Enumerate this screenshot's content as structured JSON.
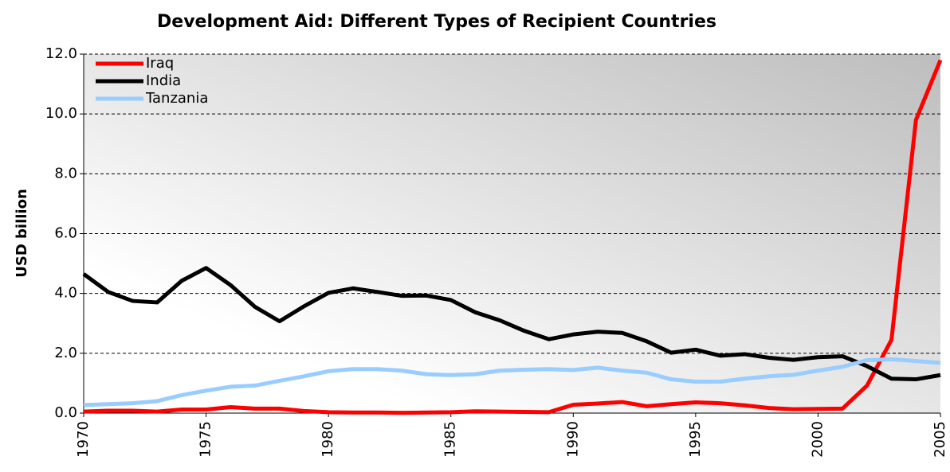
{
  "chart_data": {
    "type": "line",
    "title": "Development Aid: Different Types of Recipient Countries",
    "y_label": "USD billion",
    "x": [
      1970,
      1971,
      1972,
      1973,
      1974,
      1975,
      1976,
      1977,
      1978,
      1979,
      1980,
      1981,
      1982,
      1983,
      1984,
      1985,
      1986,
      1987,
      1988,
      1989,
      1990,
      1991,
      1992,
      1993,
      1994,
      1995,
      1996,
      1997,
      1998,
      1999,
      2000,
      2001,
      2002,
      2003,
      2004,
      2005
    ],
    "series": [
      {
        "name": "Iraq",
        "color": "#ff0000",
        "values": [
          0.05,
          0.08,
          0.08,
          0.05,
          0.12,
          0.12,
          0.2,
          0.15,
          0.15,
          0.07,
          0.03,
          0.02,
          0.02,
          0.01,
          0.02,
          0.03,
          0.06,
          0.05,
          0.04,
          0.03,
          0.28,
          0.32,
          0.37,
          0.23,
          0.3,
          0.36,
          0.33,
          0.26,
          0.17,
          0.13,
          0.14,
          0.15,
          0.92,
          2.45,
          9.8,
          11.8
        ]
      },
      {
        "name": "India",
        "color": "#000000",
        "values": [
          4.65,
          4.05,
          3.75,
          3.7,
          4.42,
          4.85,
          4.28,
          3.55,
          3.07,
          3.57,
          4.02,
          4.17,
          4.05,
          3.92,
          3.93,
          3.78,
          3.37,
          3.1,
          2.75,
          2.47,
          2.63,
          2.72,
          2.68,
          2.4,
          2.02,
          2.12,
          1.92,
          1.97,
          1.85,
          1.78,
          1.87,
          1.9,
          1.57,
          1.15,
          1.13,
          1.27
        ]
      },
      {
        "name": "Tanzania",
        "color": "#99ccff",
        "values": [
          0.27,
          0.3,
          0.33,
          0.4,
          0.6,
          0.75,
          0.88,
          0.92,
          1.08,
          1.23,
          1.4,
          1.47,
          1.47,
          1.42,
          1.3,
          1.27,
          1.3,
          1.42,
          1.45,
          1.47,
          1.44,
          1.52,
          1.42,
          1.35,
          1.13,
          1.05,
          1.05,
          1.15,
          1.23,
          1.28,
          1.42,
          1.55,
          1.77,
          1.8,
          1.74,
          1.68
        ]
      }
    ],
    "xlim": [
      1970,
      2005
    ],
    "xticks": [
      1970,
      1975,
      1980,
      1985,
      1990,
      1995,
      2000,
      2005
    ],
    "ylim": [
      0,
      12
    ],
    "yticks": [
      {
        "value": 0,
        "label": "0.0"
      },
      {
        "value": 2,
        "label": "2.0"
      },
      {
        "value": 4,
        "label": "4.0"
      },
      {
        "value": 6,
        "label": "6.0"
      },
      {
        "value": 8,
        "label": "8.0"
      },
      {
        "value": 10,
        "label": "10.0"
      },
      {
        "value": 12,
        "label": "12.0"
      }
    ],
    "grid": true,
    "legend": "upper left"
  }
}
